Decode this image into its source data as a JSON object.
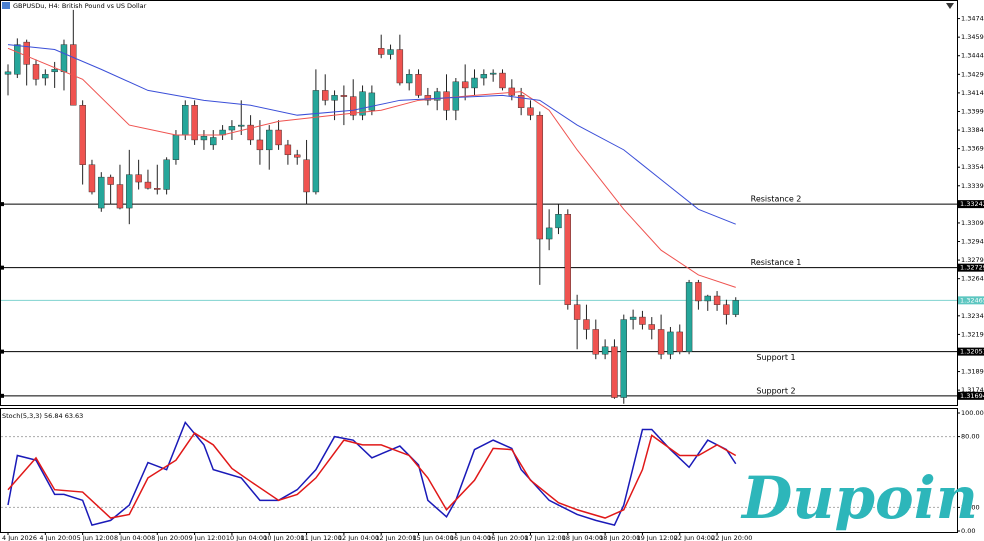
{
  "watermark": "Dupoin",
  "chart_data": [
    {
      "type": "candlestick",
      "title": "GBPUSDu, H4: British Pound vs US Dollar",
      "colors": {
        "up": "#26a69a",
        "down": "#ef5350"
      },
      "open": [
        1.3429,
        1.3429,
        1.3455,
        1.3437,
        1.3426,
        1.3431,
        1.3431,
        1.3453,
        1.3404,
        1.3356,
        1.3321,
        1.3346,
        1.334,
        1.3321,
        1.3348,
        1.3342,
        1.3337,
        1.3336,
        1.336,
        1.338,
        1.3404,
        1.3376,
        1.3372,
        1.338,
        1.3384,
        1.3387,
        1.3388,
        1.3376,
        1.3368,
        1.3384,
        1.3372,
        1.3364,
        1.336,
        1.3334,
        1.3416,
        1.3408,
        1.3412,
        1.3411,
        1.3396,
        1.34,
        1.345,
        1.3445,
        1.3449,
        1.3422,
        1.3429,
        1.3412,
        1.3408,
        1.3415,
        1.34,
        1.3423,
        1.3418,
        1.3426,
        1.3429,
        1.343,
        1.3418,
        1.3412,
        1.3402,
        1.3396,
        1.3296,
        1.3305,
        1.3316,
        1.3243,
        1.3231,
        1.3223,
        1.3203,
        1.3209,
        1.3168,
        1.3231,
        1.3233,
        1.3227,
        1.3223,
        1.3203,
        1.3221,
        1.3205,
        1.3261,
        1.3246,
        1.325,
        1.3243,
        1.3235
      ],
      "high": [
        1.3437,
        1.3458,
        1.3457,
        1.3441,
        1.3433,
        1.3439,
        1.3457,
        1.3481,
        1.3408,
        1.336,
        1.335,
        1.3348,
        1.3356,
        1.3368,
        1.336,
        1.3352,
        1.3356,
        1.3362,
        1.3384,
        1.3408,
        1.3408,
        1.3384,
        1.3384,
        1.3388,
        1.3392,
        1.3408,
        1.3396,
        1.3392,
        1.3388,
        1.3392,
        1.3376,
        1.3368,
        1.3376,
        1.3433,
        1.3429,
        1.3416,
        1.342,
        1.3425,
        1.342,
        1.342,
        1.3461,
        1.3453,
        1.3461,
        1.3433,
        1.3433,
        1.3418,
        1.3418,
        1.3429,
        1.3426,
        1.3437,
        1.3433,
        1.3433,
        1.3433,
        1.3433,
        1.3425,
        1.3418,
        1.3408,
        1.3399,
        1.332,
        1.3324,
        1.332,
        1.3251,
        1.3243,
        1.3231,
        1.3215,
        1.3215,
        1.3235,
        1.3239,
        1.3238,
        1.3233,
        1.3235,
        1.3225,
        1.3227,
        1.3263,
        1.3263,
        1.3251,
        1.3254,
        1.3247,
        1.3249
      ],
      "low": [
        1.3412,
        1.3426,
        1.342,
        1.342,
        1.342,
        1.3418,
        1.3416,
        1.3404,
        1.334,
        1.3332,
        1.3318,
        1.3324,
        1.332,
        1.3308,
        1.3336,
        1.3336,
        1.3332,
        1.3332,
        1.3356,
        1.3376,
        1.3372,
        1.3368,
        1.3368,
        1.3376,
        1.3376,
        1.338,
        1.3372,
        1.3356,
        1.3352,
        1.3368,
        1.3356,
        1.3356,
        1.3324,
        1.3332,
        1.3404,
        1.3392,
        1.3388,
        1.3392,
        1.3392,
        1.3396,
        1.3442,
        1.3441,
        1.342,
        1.3416,
        1.341,
        1.3404,
        1.34,
        1.3392,
        1.3392,
        1.3408,
        1.3412,
        1.342,
        1.3423,
        1.3416,
        1.3408,
        1.3396,
        1.3392,
        1.3259,
        1.3287,
        1.33,
        1.3239,
        1.3207,
        1.3215,
        1.3199,
        1.3199,
        1.3167,
        1.3163,
        1.3223,
        1.3223,
        1.3215,
        1.3199,
        1.3199,
        1.3203,
        1.3203,
        1.3239,
        1.3238,
        1.3238,
        1.3227,
        1.3233
      ],
      "close": [
        1.3431,
        1.3453,
        1.3437,
        1.3425,
        1.3429,
        1.3433,
        1.3453,
        1.3404,
        1.3356,
        1.3334,
        1.3346,
        1.334,
        1.3321,
        1.3348,
        1.3342,
        1.3337,
        1.3336,
        1.336,
        1.338,
        1.3404,
        1.3376,
        1.3379,
        1.3378,
        1.3384,
        1.3387,
        1.3388,
        1.3376,
        1.3368,
        1.3384,
        1.3372,
        1.3364,
        1.3362,
        1.3334,
        1.3416,
        1.3408,
        1.3412,
        1.3411,
        1.3396,
        1.3415,
        1.3414,
        1.3445,
        1.3449,
        1.3422,
        1.3429,
        1.3412,
        1.3408,
        1.3415,
        1.34,
        1.3423,
        1.3418,
        1.3426,
        1.3429,
        1.343,
        1.3418,
        1.3412,
        1.3402,
        1.3396,
        1.3296,
        1.3305,
        1.3316,
        1.3243,
        1.3231,
        1.3223,
        1.3203,
        1.3209,
        1.3168,
        1.3231,
        1.3233,
        1.3227,
        1.3223,
        1.3203,
        1.3221,
        1.3205,
        1.3261,
        1.3246,
        1.325,
        1.3243,
        1.3235,
        1.32465
      ],
      "overlays": [
        {
          "color": "#ef5350",
          "x": [
            0,
            8,
            13,
            18,
            23,
            29,
            35,
            40,
            44,
            50,
            55,
            58,
            61,
            66,
            70,
            74,
            78
          ],
          "values": [
            1.345,
            1.3425,
            1.3388,
            1.338,
            1.338,
            1.3391,
            1.3396,
            1.34,
            1.3408,
            1.3412,
            1.3415,
            1.34,
            1.3368,
            1.332,
            1.3287,
            1.3267,
            1.3257
          ]
        },
        {
          "color": "#3b4fd8",
          "x": [
            0,
            5,
            10,
            15,
            21,
            26,
            31,
            37,
            42,
            47,
            53,
            57,
            61,
            66,
            70,
            74,
            78
          ],
          "values": [
            1.3453,
            1.3449,
            1.3433,
            1.3416,
            1.3408,
            1.3404,
            1.3396,
            1.34,
            1.3408,
            1.341,
            1.3412,
            1.3408,
            1.3388,
            1.3368,
            1.3344,
            1.332,
            1.3308
          ]
        }
      ],
      "levels": [
        {
          "name": "Resistance 2",
          "value": 1.33242
        },
        {
          "name": "Resistance 1",
          "value": 1.32729
        },
        {
          "name": "Support 1",
          "value": 1.32051
        },
        {
          "name": "Support 2",
          "value": 1.31694
        }
      ],
      "bid": 1.32465,
      "ylim": [
        1.3162,
        1.3489
      ],
      "yticks": [
        {
          "value": 1.3474,
          "label": "1.34740"
        },
        {
          "value": 1.3459,
          "label": "1.34590"
        },
        {
          "value": 1.3444,
          "label": "1.34440"
        },
        {
          "value": 1.3429,
          "label": "1.34290"
        },
        {
          "value": 1.3414,
          "label": "1.34140"
        },
        {
          "value": 1.3399,
          "label": "1.33990"
        },
        {
          "value": 1.3384,
          "label": "1.33840"
        },
        {
          "value": 1.3369,
          "label": "1.33690"
        },
        {
          "value": 1.3354,
          "label": "1.33540"
        },
        {
          "value": 1.3339,
          "label": "1.33390"
        },
        {
          "value": 1.3309,
          "label": "1.33090"
        },
        {
          "value": 1.3294,
          "label": "1.32940"
        },
        {
          "value": 1.3279,
          "label": "1.32790"
        },
        {
          "value": 1.3264,
          "label": "1.32640"
        },
        {
          "value": 1.3234,
          "label": "1.32340"
        },
        {
          "value": 1.3219,
          "label": "1.32190"
        },
        {
          "value": 1.3189,
          "label": "1.31890"
        },
        {
          "value": 1.3174,
          "label": "1.31740"
        }
      ],
      "x_labels": [
        "4 Jun 2026",
        "4 Jun 20:00",
        "5 Jun 12:00",
        "8 Jun 04:00",
        "8 Jun 20:00",
        "9 Jun 12:00",
        "10 Jun 04:00",
        "10 Jun 20:00",
        "11 Jun 12:00",
        "12 Jun 04:00",
        "12 Jun 20:00",
        "15 Jun 04:00",
        "16 Jun 04:00",
        "16 Jun 20:00",
        "17 Jun 12:00",
        "18 Jun 04:00",
        "18 Jun 20:00",
        "19 Jun 12:00",
        "22 Jun 04:00",
        "22 Jun 20:00"
      ]
    },
    {
      "type": "line",
      "title": "Stoch(5,3,3) 56.84 63.63",
      "ylim": [
        0,
        100
      ],
      "yticks": [
        {
          "value": 100,
          "label": "100.00"
        },
        {
          "value": 80,
          "label": "80.00"
        },
        {
          "value": 20,
          "label": "20.00"
        },
        {
          "value": 0,
          "label": "0.00"
        }
      ],
      "series": [
        {
          "color": "#1a1ab8",
          "x": [
            0,
            1,
            3,
            5,
            6,
            8,
            9,
            11,
            13,
            15,
            17,
            19,
            21,
            22,
            25,
            27,
            29,
            31,
            33,
            35,
            37,
            39,
            42,
            44,
            45,
            47,
            48,
            50,
            52,
            54,
            55,
            58,
            59,
            61,
            63,
            65,
            66,
            68,
            69,
            71,
            73,
            75,
            77,
            78
          ],
          "values": [
            22,
            64,
            60,
            31,
            31,
            26,
            5,
            9,
            22,
            58,
            52,
            92,
            73,
            52,
            45,
            26,
            26,
            35,
            52,
            80,
            77,
            62,
            72,
            56,
            26,
            12,
            26,
            69,
            77,
            70,
            52,
            26,
            22,
            14,
            9,
            5,
            22,
            86,
            86,
            69,
            54,
            77,
            69,
            57
          ]
        },
        {
          "color": "#e01818",
          "x": [
            0,
            3,
            5,
            8,
            11,
            13,
            15,
            18,
            20,
            22,
            24,
            26,
            29,
            31,
            33,
            36,
            38,
            40,
            43,
            45,
            47,
            50,
            52,
            54,
            56,
            59,
            61,
            64,
            66,
            68,
            69,
            72,
            74,
            76,
            78
          ],
          "values": [
            35,
            62,
            35,
            33,
            11,
            14,
            45,
            60,
            83,
            73,
            53,
            42,
            26,
            31,
            45,
            77,
            73,
            73,
            64,
            45,
            18,
            43,
            70,
            69,
            43,
            24,
            18,
            11,
            18,
            52,
            81,
            64,
            64,
            73,
            64
          ]
        }
      ]
    }
  ]
}
